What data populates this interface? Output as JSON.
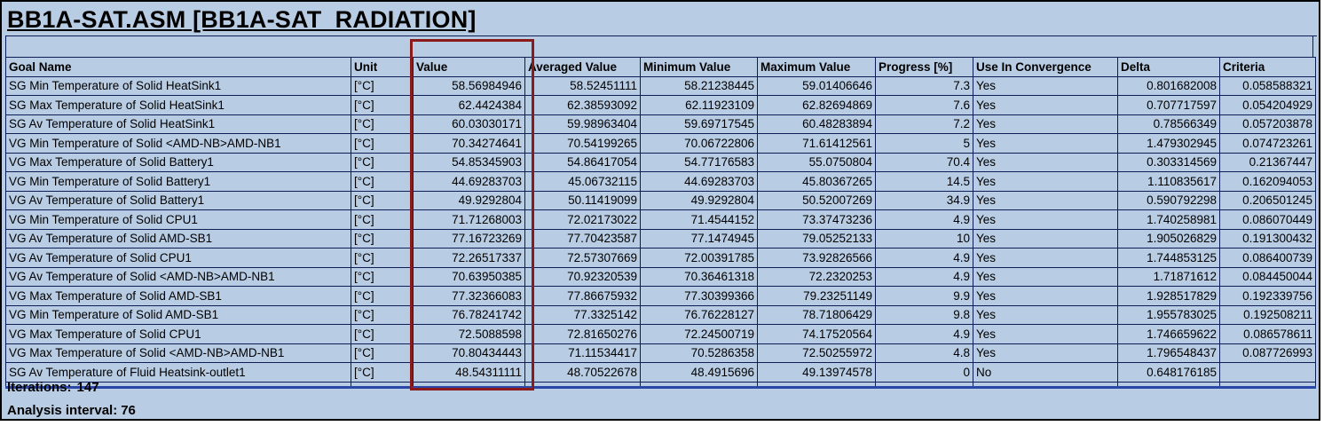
{
  "title": "BB1A-SAT.ASM [BB1A-SAT_RADIATION]",
  "table": {
    "headers": [
      "Goal Name",
      "Unit",
      "Value",
      "Averaged Value",
      "Minimum Value",
      "Maximum Value",
      "Progress [%]",
      "Use In Convergence",
      "Delta",
      "Criteria"
    ],
    "rows": [
      [
        "SG Min Temperature of Solid HeatSink1",
        "[°C]",
        "58.56984946",
        "58.52451111",
        "58.21238445",
        "59.01406646",
        "7.3",
        "Yes",
        "0.801682008",
        "0.058588321"
      ],
      [
        "SG Max Temperature of Solid HeatSink1",
        "[°C]",
        "62.4424384",
        "62.38593092",
        "62.11923109",
        "62.82694869",
        "7.6",
        "Yes",
        "0.707717597",
        "0.054204929"
      ],
      [
        "SG Av Temperature of Solid HeatSink1",
        "[°C]",
        "60.03030171",
        "59.98963404",
        "59.69717545",
        "60.48283894",
        "7.2",
        "Yes",
        "0.78566349",
        "0.057203878"
      ],
      [
        "VG Min Temperature of Solid <AMD-NB>AMD-NB1",
        "[°C]",
        "70.34274641",
        "70.54199265",
        "70.06722806",
        "71.61412561",
        "5",
        "Yes",
        "1.479302945",
        "0.074723261"
      ],
      [
        "VG Max Temperature of Solid Battery1",
        "[°C]",
        "54.85345903",
        "54.86417054",
        "54.77176583",
        "55.0750804",
        "70.4",
        "Yes",
        "0.303314569",
        "0.21367447"
      ],
      [
        "VG Min Temperature of Solid Battery1",
        "[°C]",
        "44.69283703",
        "45.06732115",
        "44.69283703",
        "45.80367265",
        "14.5",
        "Yes",
        "1.110835617",
        "0.162094053"
      ],
      [
        "VG Av Temperature of Solid Battery1",
        "[°C]",
        "49.9292804",
        "50.11419099",
        "49.9292804",
        "50.52007269",
        "34.9",
        "Yes",
        "0.590792298",
        "0.206501245"
      ],
      [
        "VG Min Temperature of Solid CPU1",
        "[°C]",
        "71.71268003",
        "72.02173022",
        "71.4544152",
        "73.37473236",
        "4.9",
        "Yes",
        "1.740258981",
        "0.086070449"
      ],
      [
        "VG Av Temperature of Solid AMD-SB1",
        "[°C]",
        "77.16723269",
        "77.70423587",
        "77.1474945",
        "79.05252133",
        "10",
        "Yes",
        "1.905026829",
        "0.191300432"
      ],
      [
        "VG Av Temperature of Solid CPU1",
        "[°C]",
        "72.26517337",
        "72.57307669",
        "72.00391785",
        "73.92826566",
        "4.9",
        "Yes",
        "1.744853125",
        "0.086400739"
      ],
      [
        "VG Av Temperature of Solid <AMD-NB>AMD-NB1",
        "[°C]",
        "70.63950385",
        "70.92320539",
        "70.36461318",
        "72.2320253",
        "4.9",
        "Yes",
        "1.71871612",
        "0.084450044"
      ],
      [
        "VG Max Temperature of Solid AMD-SB1",
        "[°C]",
        "77.32366083",
        "77.86675932",
        "77.30399366",
        "79.23251149",
        "9.9",
        "Yes",
        "1.928517829",
        "0.192339756"
      ],
      [
        "VG Min Temperature of Solid AMD-SB1",
        "[°C]",
        "76.78241742",
        "77.3325142",
        "76.76228127",
        "78.71806429",
        "9.8",
        "Yes",
        "1.955783025",
        "0.192508211"
      ],
      [
        "VG Max Temperature of Solid CPU1",
        "[°C]",
        "72.5088598",
        "72.81650276",
        "72.24500719",
        "74.17520564",
        "4.9",
        "Yes",
        "1.746659622",
        "0.086578611"
      ],
      [
        "VG Max Temperature of Solid <AMD-NB>AMD-NB1",
        "[°C]",
        "70.80434443",
        "71.11534417",
        "70.5286358",
        "72.50255972",
        "4.8",
        "Yes",
        "1.796548437",
        "0.087726993"
      ],
      [
        "SG Av Temperature of Fluid Heatsink-outlet1",
        "[°C]",
        "48.54311111",
        "48.70522678",
        "48.4915696",
        "49.13974578",
        "0",
        "No",
        "0.648176185",
        ""
      ]
    ]
  },
  "footer": {
    "iterations_label": "Iterations:",
    "iterations_value": "147",
    "interval_label": "Analysis interval:",
    "interval_value": "76"
  },
  "colors": {
    "background": "#b8cce4",
    "grid": "#0f1d57",
    "highlight": "#8b1a1a"
  }
}
